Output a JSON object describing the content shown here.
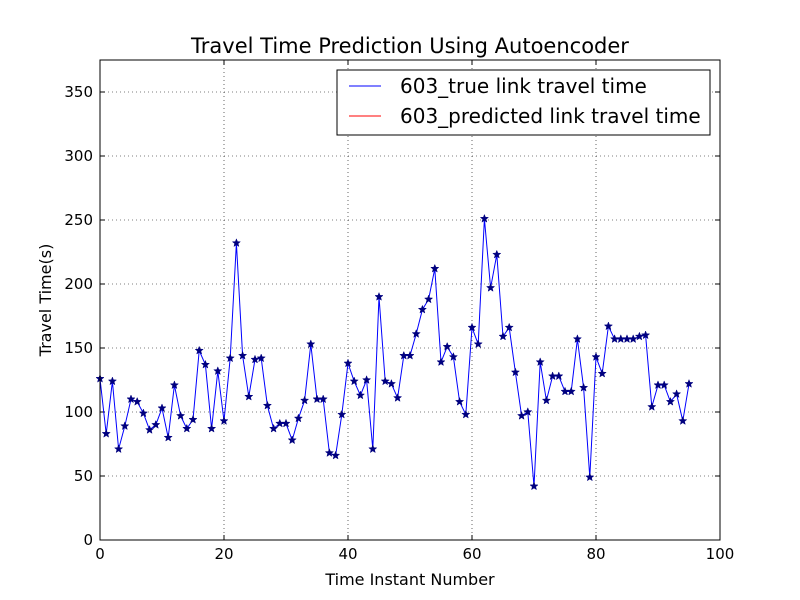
{
  "chart_data": {
    "type": "line",
    "title": "Travel Time Prediction Using Autoencoder",
    "xlabel": "Time Instant Number",
    "ylabel": "Travel Time(s)",
    "xlim": [
      0,
      100
    ],
    "ylim": [
      0,
      375
    ],
    "xticks": [
      0,
      20,
      40,
      60,
      80,
      100
    ],
    "yticks": [
      0,
      50,
      100,
      150,
      200,
      250,
      300,
      350
    ],
    "grid": true,
    "legend_position": "top-right",
    "series": [
      {
        "name": "603_true link travel time",
        "color": "#0000ff",
        "marker": "star",
        "values": [
          126,
          83,
          124,
          71,
          89,
          110,
          108,
          99,
          86,
          90,
          103,
          80,
          121,
          97,
          87,
          94,
          148,
          137,
          87,
          132,
          93,
          142,
          232,
          144,
          112,
          141,
          142,
          105,
          87,
          91,
          91,
          78,
          95,
          109,
          153,
          110,
          110,
          68,
          66,
          98,
          138,
          124,
          113,
          125,
          71,
          190,
          124,
          122,
          111,
          144,
          144,
          161,
          180,
          188,
          212,
          139,
          151,
          143,
          108,
          98,
          166,
          153,
          251,
          197,
          223,
          159,
          166,
          131,
          97,
          100,
          42,
          139,
          109,
          128,
          128,
          116,
          116,
          157,
          119,
          49,
          143,
          130,
          167,
          157,
          157,
          157,
          157,
          159,
          160,
          104,
          121,
          121,
          108,
          114,
          93,
          122
        ]
      },
      {
        "name": "603_predicted link travel time",
        "color": "#ff0000",
        "marker": "none",
        "values": [
          0,
          0,
          0,
          0,
          0,
          0,
          0,
          0,
          0,
          0,
          0,
          0,
          0,
          0,
          0,
          0,
          0,
          0,
          0,
          0,
          0,
          0,
          0,
          0,
          0,
          0,
          0,
          0,
          0,
          0,
          0,
          0,
          0,
          0,
          0,
          0,
          0,
          0,
          0,
          0,
          0,
          0,
          0,
          0,
          0,
          0,
          0,
          0,
          0,
          0,
          0,
          0,
          0,
          0,
          0,
          0,
          0,
          0,
          0,
          0,
          0,
          0,
          0,
          0,
          0,
          0,
          0,
          0,
          0,
          0,
          0,
          0,
          0,
          0,
          0,
          0,
          0,
          0,
          0,
          0,
          0,
          0,
          0,
          0,
          0,
          0,
          0,
          0,
          0,
          0,
          0,
          0,
          0,
          0,
          0,
          0
        ]
      }
    ]
  }
}
